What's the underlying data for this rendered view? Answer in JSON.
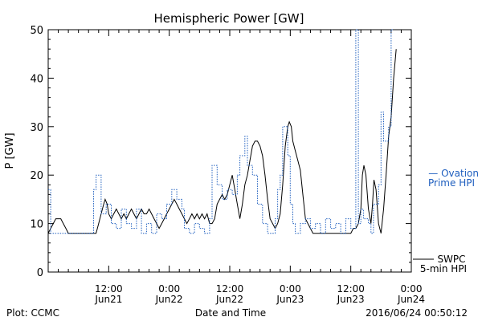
{
  "chart_data": {
    "type": "line",
    "title": "Hemispheric Power [GW]",
    "xlabel": "Date and Time",
    "ylabel": "P [GW]",
    "xlim": [
      0,
      72
    ],
    "ylim": [
      0,
      50
    ],
    "y_ticks": [
      0,
      10,
      20,
      30,
      40,
      50
    ],
    "x_ticks": [
      {
        "x": 12,
        "line1": "12:00",
        "line2": "Jun21"
      },
      {
        "x": 24,
        "line1": "0:00",
        "line2": "Jun22"
      },
      {
        "x": 36,
        "line1": "12:00",
        "line2": "Jun22"
      },
      {
        "x": 48,
        "line1": "0:00",
        "line2": "Jun23"
      },
      {
        "x": 60,
        "line1": "12:00",
        "line2": "Jun23"
      },
      {
        "x": 72,
        "line1": "0:00",
        "line2": "Jun24"
      }
    ],
    "series": [
      {
        "name": "SWPC 5-min HPI",
        "legend_line1": "SWPC",
        "legend_line2": "5-min HPI",
        "color": "#000000",
        "style": "solid",
        "points": [
          [
            0,
            8
          ],
          [
            0.5,
            9
          ],
          [
            1,
            10
          ],
          [
            1.5,
            11
          ],
          [
            2.5,
            11
          ],
          [
            3,
            10
          ],
          [
            3.5,
            9
          ],
          [
            4,
            8
          ],
          [
            5,
            8
          ],
          [
            9,
            8
          ],
          [
            9.5,
            8
          ],
          [
            10,
            10
          ],
          [
            10.5,
            12
          ],
          [
            11,
            14
          ],
          [
            11.3,
            15
          ],
          [
            11.7,
            14
          ],
          [
            12,
            12
          ],
          [
            12.5,
            11
          ],
          [
            13,
            12
          ],
          [
            13.5,
            13
          ],
          [
            14,
            12
          ],
          [
            14.5,
            11
          ],
          [
            15,
            12
          ],
          [
            15.5,
            11
          ],
          [
            16,
            12
          ],
          [
            16.5,
            13
          ],
          [
            17,
            12
          ],
          [
            17.5,
            11
          ],
          [
            18,
            12
          ],
          [
            18.5,
            13
          ],
          [
            19,
            12
          ],
          [
            19.5,
            12
          ],
          [
            20,
            13
          ],
          [
            20.5,
            12
          ],
          [
            21,
            11
          ],
          [
            21.5,
            10
          ],
          [
            22,
            9
          ],
          [
            22.5,
            10
          ],
          [
            23,
            11
          ],
          [
            23.5,
            12
          ],
          [
            24,
            13
          ],
          [
            24.5,
            14
          ],
          [
            25,
            15
          ],
          [
            25.5,
            14
          ],
          [
            26,
            13
          ],
          [
            26.5,
            12
          ],
          [
            27,
            11
          ],
          [
            27.5,
            10
          ],
          [
            28,
            11
          ],
          [
            28.5,
            12
          ],
          [
            29,
            11
          ],
          [
            29.5,
            12
          ],
          [
            30,
            11
          ],
          [
            30.5,
            12
          ],
          [
            31,
            11
          ],
          [
            31.5,
            12
          ],
          [
            32,
            10
          ],
          [
            32.5,
            10
          ],
          [
            33,
            11
          ],
          [
            33.5,
            14
          ],
          [
            34,
            15
          ],
          [
            34.5,
            16
          ],
          [
            35,
            15
          ],
          [
            35.5,
            16
          ],
          [
            36,
            18
          ],
          [
            36.5,
            20
          ],
          [
            37,
            17
          ],
          [
            37.5,
            14
          ],
          [
            38,
            11
          ],
          [
            38.5,
            14
          ],
          [
            39,
            18
          ],
          [
            39.5,
            20
          ],
          [
            40,
            23
          ],
          [
            40.5,
            26
          ],
          [
            41,
            27
          ],
          [
            41.5,
            27
          ],
          [
            42,
            26
          ],
          [
            42.5,
            24
          ],
          [
            43,
            20
          ],
          [
            43.5,
            15
          ],
          [
            44,
            11
          ],
          [
            44.5,
            10
          ],
          [
            45,
            9
          ],
          [
            45.5,
            10
          ],
          [
            46,
            12
          ],
          [
            46.5,
            18
          ],
          [
            47,
            26
          ],
          [
            47.5,
            30
          ],
          [
            47.8,
            31
          ],
          [
            48.2,
            30
          ],
          [
            48.5,
            27
          ],
          [
            49,
            25
          ],
          [
            49.5,
            23
          ],
          [
            50,
            21
          ],
          [
            50.5,
            16
          ],
          [
            51,
            11
          ],
          [
            51.5,
            10
          ],
          [
            52,
            9
          ],
          [
            52.5,
            8
          ],
          [
            60,
            8
          ],
          [
            60.5,
            9
          ],
          [
            61,
            9
          ],
          [
            61.5,
            10
          ],
          [
            62,
            13
          ],
          [
            62.3,
            20
          ],
          [
            62.6,
            22
          ],
          [
            63,
            20
          ],
          [
            63.5,
            13
          ],
          [
            64,
            10
          ],
          [
            64.3,
            14
          ],
          [
            64.6,
            19
          ],
          [
            65,
            17
          ],
          [
            65.5,
            10
          ],
          [
            66,
            8
          ],
          [
            66.5,
            13
          ],
          [
            67,
            20
          ],
          [
            67.5,
            28
          ],
          [
            68,
            32
          ],
          [
            68.5,
            40
          ],
          [
            69,
            46
          ]
        ]
      },
      {
        "name": "Ovation Prime HPI",
        "legend_line1": "— Ovation",
        "legend_line2": "Prime HPI",
        "color": "#1f5fbf",
        "style": "dotted",
        "points": [
          [
            0,
            17
          ],
          [
            0.5,
            17
          ],
          [
            0.5,
            8
          ],
          [
            9,
            8
          ],
          [
            9,
            17
          ],
          [
            9.5,
            17
          ],
          [
            9.5,
            20
          ],
          [
            10.5,
            20
          ],
          [
            10.5,
            12
          ],
          [
            11.5,
            12
          ],
          [
            11.5,
            14
          ],
          [
            12.5,
            14
          ],
          [
            12.5,
            10
          ],
          [
            13.5,
            10
          ],
          [
            13.5,
            9
          ],
          [
            14.5,
            9
          ],
          [
            14.5,
            13
          ],
          [
            15.5,
            13
          ],
          [
            15.5,
            10
          ],
          [
            16.5,
            10
          ],
          [
            16.5,
            9
          ],
          [
            17.5,
            9
          ],
          [
            17.5,
            13
          ],
          [
            18.5,
            13
          ],
          [
            18.5,
            8
          ],
          [
            19.5,
            8
          ],
          [
            19.5,
            10
          ],
          [
            20.5,
            10
          ],
          [
            20.5,
            8
          ],
          [
            21.5,
            8
          ],
          [
            21.5,
            12
          ],
          [
            22.5,
            12
          ],
          [
            22.5,
            11
          ],
          [
            23.5,
            11
          ],
          [
            23.5,
            14
          ],
          [
            24.5,
            14
          ],
          [
            24.5,
            17
          ],
          [
            25.5,
            17
          ],
          [
            25.5,
            15
          ],
          [
            26.5,
            15
          ],
          [
            26.5,
            13
          ],
          [
            27,
            13
          ],
          [
            27,
            9
          ],
          [
            28,
            9
          ],
          [
            28,
            8
          ],
          [
            29,
            8
          ],
          [
            29,
            10
          ],
          [
            30,
            10
          ],
          [
            30,
            9
          ],
          [
            31,
            9
          ],
          [
            31,
            8
          ],
          [
            32,
            8
          ],
          [
            32,
            11
          ],
          [
            32.5,
            11
          ],
          [
            32.5,
            22
          ],
          [
            33.5,
            22
          ],
          [
            33.5,
            18
          ],
          [
            34.5,
            18
          ],
          [
            34.5,
            15
          ],
          [
            35.5,
            15
          ],
          [
            35.5,
            17
          ],
          [
            36.5,
            17
          ],
          [
            36.5,
            16
          ],
          [
            37.5,
            16
          ],
          [
            37.5,
            20
          ],
          [
            38,
            20
          ],
          [
            38,
            24
          ],
          [
            39,
            24
          ],
          [
            39,
            28
          ],
          [
            39.5,
            28
          ],
          [
            39.5,
            22
          ],
          [
            40.5,
            22
          ],
          [
            40.5,
            20
          ],
          [
            41.5,
            20
          ],
          [
            41.5,
            14
          ],
          [
            42.5,
            14
          ],
          [
            42.5,
            10
          ],
          [
            43.5,
            10
          ],
          [
            43.5,
            8
          ],
          [
            45,
            8
          ],
          [
            45,
            11
          ],
          [
            45.5,
            11
          ],
          [
            45.5,
            17
          ],
          [
            46,
            17
          ],
          [
            46,
            20
          ],
          [
            46.5,
            20
          ],
          [
            46.5,
            30
          ],
          [
            47.5,
            30
          ],
          [
            47.5,
            24
          ],
          [
            48,
            24
          ],
          [
            48,
            14
          ],
          [
            48.5,
            14
          ],
          [
            48.5,
            10
          ],
          [
            49,
            10
          ],
          [
            49,
            8
          ],
          [
            50,
            8
          ],
          [
            50,
            10
          ],
          [
            51,
            10
          ],
          [
            51,
            11
          ],
          [
            52,
            11
          ],
          [
            52,
            9
          ],
          [
            53,
            9
          ],
          [
            53,
            10
          ],
          [
            54,
            10
          ],
          [
            54,
            8
          ],
          [
            55,
            8
          ],
          [
            55,
            11
          ],
          [
            56,
            11
          ],
          [
            56,
            9
          ],
          [
            57,
            9
          ],
          [
            57,
            10
          ],
          [
            58,
            10
          ],
          [
            58,
            8
          ],
          [
            59,
            8
          ],
          [
            59,
            11
          ],
          [
            60,
            11
          ],
          [
            60,
            9
          ],
          [
            61,
            9
          ],
          [
            61,
            50
          ],
          [
            61.5,
            50
          ],
          [
            61.5,
            10
          ],
          [
            62,
            10
          ],
          [
            62,
            13
          ],
          [
            62.5,
            13
          ],
          [
            62.5,
            11
          ],
          [
            63.5,
            11
          ],
          [
            63.5,
            10
          ],
          [
            64,
            10
          ],
          [
            64,
            8
          ],
          [
            64.5,
            8
          ],
          [
            64.5,
            14
          ],
          [
            65.5,
            14
          ],
          [
            65.5,
            18
          ],
          [
            66,
            18
          ],
          [
            66,
            33
          ],
          [
            66.5,
            33
          ],
          [
            66.5,
            27
          ],
          [
            67.5,
            27
          ],
          [
            67.5,
            30
          ],
          [
            68,
            30
          ],
          [
            68,
            50
          ],
          [
            68.5,
            50
          ]
        ]
      }
    ],
    "grid": false,
    "legend": "right"
  },
  "footer": {
    "plot_credit": "Plot: CCMC",
    "timestamp": "2016/06/24 00:50:12"
  }
}
